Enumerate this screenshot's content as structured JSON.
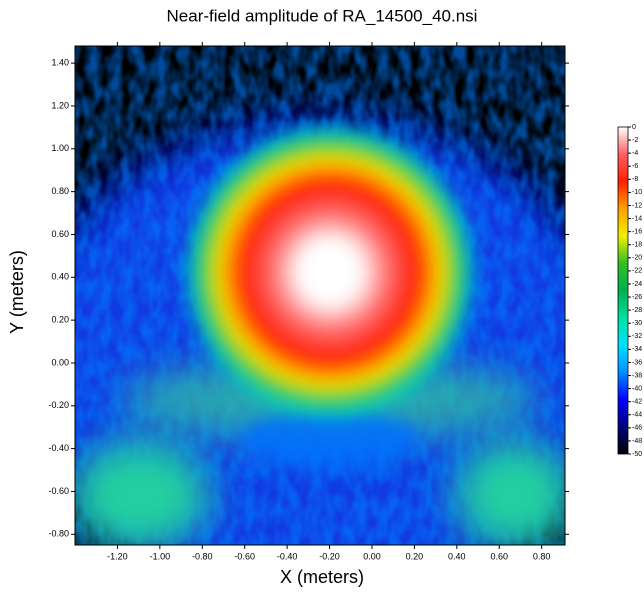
{
  "chart_data": {
    "type": "heatmap",
    "title": "Near-field amplitude of RA_14500_40.nsi",
    "x_label": "X (meters)",
    "y_label": "Y (meters)",
    "xlim": [
      -1.4,
      0.91
    ],
    "ylim": [
      -0.85,
      1.48
    ],
    "xticks": [
      {
        "value": -1.2,
        "label": "-1.20"
      },
      {
        "value": -1.0,
        "label": "-1.00"
      },
      {
        "value": -0.8,
        "label": "-0.80"
      },
      {
        "value": -0.6,
        "label": "-0.60"
      },
      {
        "value": -0.4,
        "label": "-0.40"
      },
      {
        "value": -0.2,
        "label": "-0.20"
      },
      {
        "value": 0,
        "label": "0.00"
      },
      {
        "value": 0.2,
        "label": "0.20"
      },
      {
        "value": 0.4,
        "label": "0.40"
      },
      {
        "value": 0.6,
        "label": "0.60"
      },
      {
        "value": 0.8,
        "label": "0.80"
      }
    ],
    "yticks": [
      {
        "value": -0.8,
        "label": "-0.80"
      },
      {
        "value": -0.6,
        "label": "-0.60"
      },
      {
        "value": -0.4,
        "label": "-0.40"
      },
      {
        "value": -0.2,
        "label": "-0.20"
      },
      {
        "value": 0,
        "label": "0.00"
      },
      {
        "value": 0.2,
        "label": "0.20"
      },
      {
        "value": 0.4,
        "label": "0.40"
      },
      {
        "value": 0.6,
        "label": "0.60"
      },
      {
        "value": 0.8,
        "label": "0.80"
      },
      {
        "value": 1.0,
        "label": "1.00"
      },
      {
        "value": 1.2,
        "label": "1.20"
      },
      {
        "value": 1.4,
        "label": "1.40"
      }
    ],
    "colorbar_lim": [
      -50,
      0
    ],
    "colorbar_ticks": [
      0,
      -2,
      -4,
      -6,
      -8,
      -10,
      -12,
      -14,
      -16,
      -18,
      -20,
      -22,
      -24,
      -26,
      -28,
      -30,
      -32,
      -34,
      -36,
      -38,
      -40,
      -42,
      -44,
      -46,
      -48,
      -50
    ],
    "colorscale": [
      "#000000",
      "#00007a",
      "#0000ff",
      "#0090ff",
      "#00e0ff",
      "#00e0a0",
      "#00b050",
      "#30c020",
      "#f0f000",
      "#ffa000",
      "#ff2000",
      "#ff6060",
      "#ffffff"
    ]
  }
}
